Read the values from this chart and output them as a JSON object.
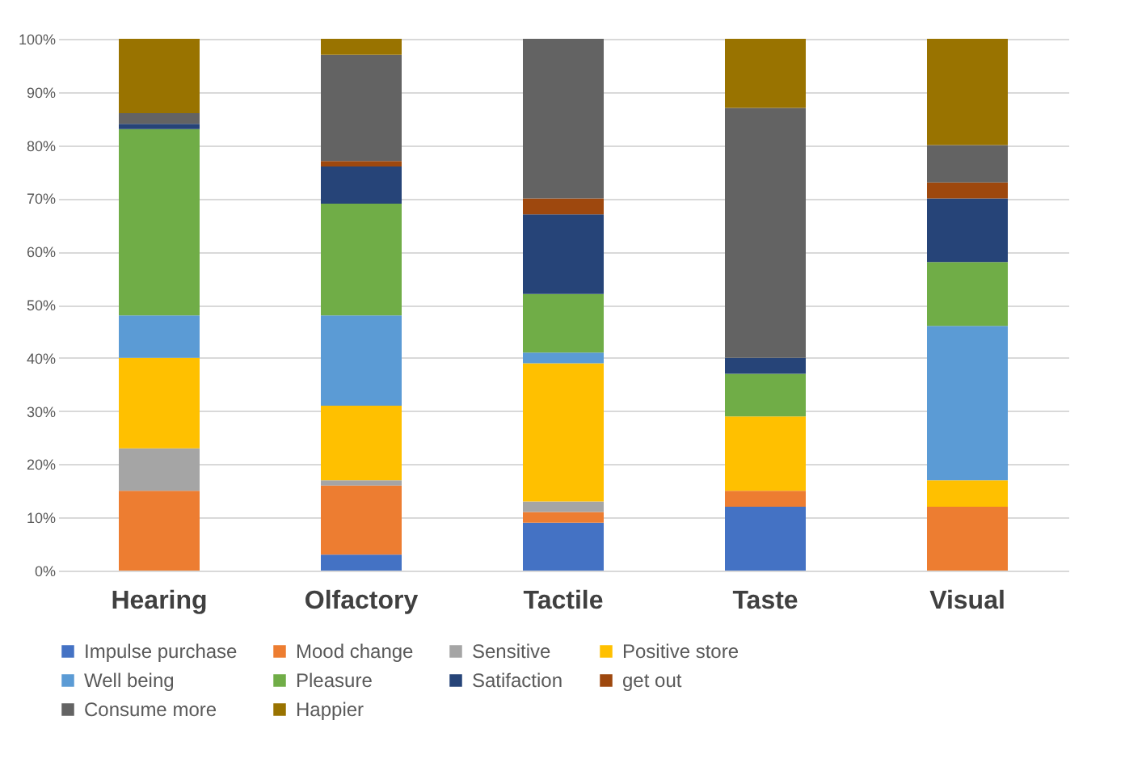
{
  "chart_data": {
    "type": "bar",
    "stacked": true,
    "categories": [
      "Hearing",
      "Olfactory",
      "Tactile",
      "Taste",
      "Visual"
    ],
    "series": [
      {
        "name": "Impulse purchase",
        "color": "#4472c4",
        "values": [
          0,
          3,
          9,
          12,
          0
        ]
      },
      {
        "name": "Mood change",
        "color": "#ed7d31",
        "values": [
          15,
          13,
          2,
          3,
          12
        ]
      },
      {
        "name": "Sensitive",
        "color": "#a5a5a5",
        "values": [
          8,
          1,
          2,
          0,
          0
        ]
      },
      {
        "name": "Positive store",
        "color": "#ffc000",
        "values": [
          17,
          14,
          26,
          14,
          5
        ]
      },
      {
        "name": "Well being",
        "color": "#5b9bd5",
        "values": [
          8,
          17,
          2,
          0,
          29
        ]
      },
      {
        "name": "Pleasure",
        "color": "#70ad47",
        "values": [
          35,
          21,
          11,
          8,
          12
        ]
      },
      {
        "name": "Satifaction",
        "color": "#264478",
        "values": [
          1,
          7,
          15,
          3,
          12
        ]
      },
      {
        "name": "get out",
        "color": "#9e480e",
        "values": [
          0,
          1,
          3,
          0,
          3
        ]
      },
      {
        "name": "Consume more",
        "color": "#636363",
        "values": [
          2,
          20,
          30,
          47,
          7
        ]
      },
      {
        "name": "Happier",
        "color": "#997300",
        "values": [
          14,
          3,
          0,
          13,
          20
        ]
      }
    ],
    "ylim": [
      0,
      100
    ],
    "yticks": [
      {
        "value": 0,
        "label": "0%"
      },
      {
        "value": 10,
        "label": "10%"
      },
      {
        "value": 20,
        "label": "20%"
      },
      {
        "value": 30,
        "label": "30%"
      },
      {
        "value": 40,
        "label": "40%"
      },
      {
        "value": 50,
        "label": "50%"
      },
      {
        "value": 60,
        "label": "60%"
      },
      {
        "value": 70,
        "label": "70%"
      },
      {
        "value": 80,
        "label": "80%"
      },
      {
        "value": 90,
        "label": "90%"
      },
      {
        "value": 100,
        "label": "100%"
      }
    ],
    "grid": "y",
    "legend": "bottom"
  }
}
